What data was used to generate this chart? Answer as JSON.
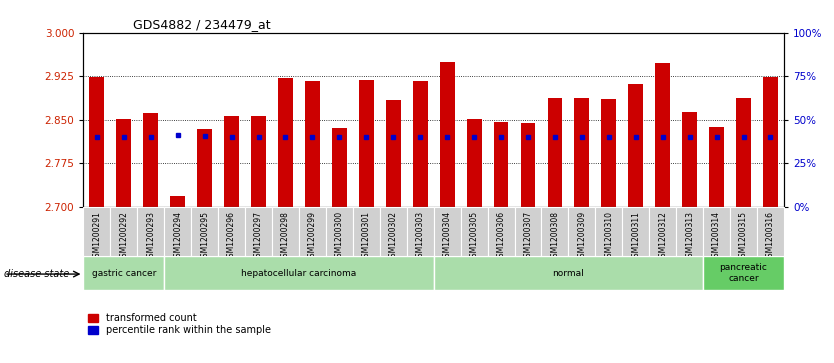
{
  "title": "GDS4882 / 234479_at",
  "samples": [
    "GSM1200291",
    "GSM1200292",
    "GSM1200293",
    "GSM1200294",
    "GSM1200295",
    "GSM1200296",
    "GSM1200297",
    "GSM1200298",
    "GSM1200299",
    "GSM1200300",
    "GSM1200301",
    "GSM1200302",
    "GSM1200303",
    "GSM1200304",
    "GSM1200305",
    "GSM1200306",
    "GSM1200307",
    "GSM1200308",
    "GSM1200309",
    "GSM1200310",
    "GSM1200311",
    "GSM1200312",
    "GSM1200313",
    "GSM1200314",
    "GSM1200315",
    "GSM1200316"
  ],
  "bar_heights": [
    2.924,
    2.851,
    2.862,
    2.718,
    2.835,
    2.857,
    2.856,
    2.922,
    2.916,
    2.836,
    2.919,
    2.884,
    2.916,
    2.95,
    2.851,
    2.847,
    2.845,
    2.888,
    2.888,
    2.885,
    2.912,
    2.948,
    2.864,
    2.838,
    2.888,
    2.924
  ],
  "percentile_values": [
    2.82,
    2.82,
    2.82,
    2.824,
    2.822,
    2.82,
    2.82,
    2.82,
    2.82,
    2.82,
    2.82,
    2.82,
    2.82,
    2.82,
    2.82,
    2.82,
    2.82,
    2.82,
    2.82,
    2.82,
    2.82,
    2.82,
    2.82,
    2.82,
    2.82,
    2.82
  ],
  "y_min": 2.7,
  "y_max": 3.0,
  "y_ticks_left": [
    2.7,
    2.775,
    2.85,
    2.925,
    3.0
  ],
  "y_ticks_right": [
    0,
    25,
    50,
    75,
    100
  ],
  "bar_color": "#CC0000",
  "dot_color": "#0000CC",
  "bg_color": "#ffffff",
  "group_info": [
    {
      "start": 0,
      "end": 2,
      "label": "gastric cancer"
    },
    {
      "start": 3,
      "end": 12,
      "label": "hepatocellular carcinoma"
    },
    {
      "start": 13,
      "end": 22,
      "label": "normal"
    },
    {
      "start": 23,
      "end": 25,
      "label": "pancreatic\ncancer"
    }
  ],
  "tick_label_color_left": "#CC2200",
  "tick_label_color_right": "#0000CC",
  "grid_color": "#888888",
  "grid_lines": [
    2.775,
    2.85,
    2.925
  ]
}
